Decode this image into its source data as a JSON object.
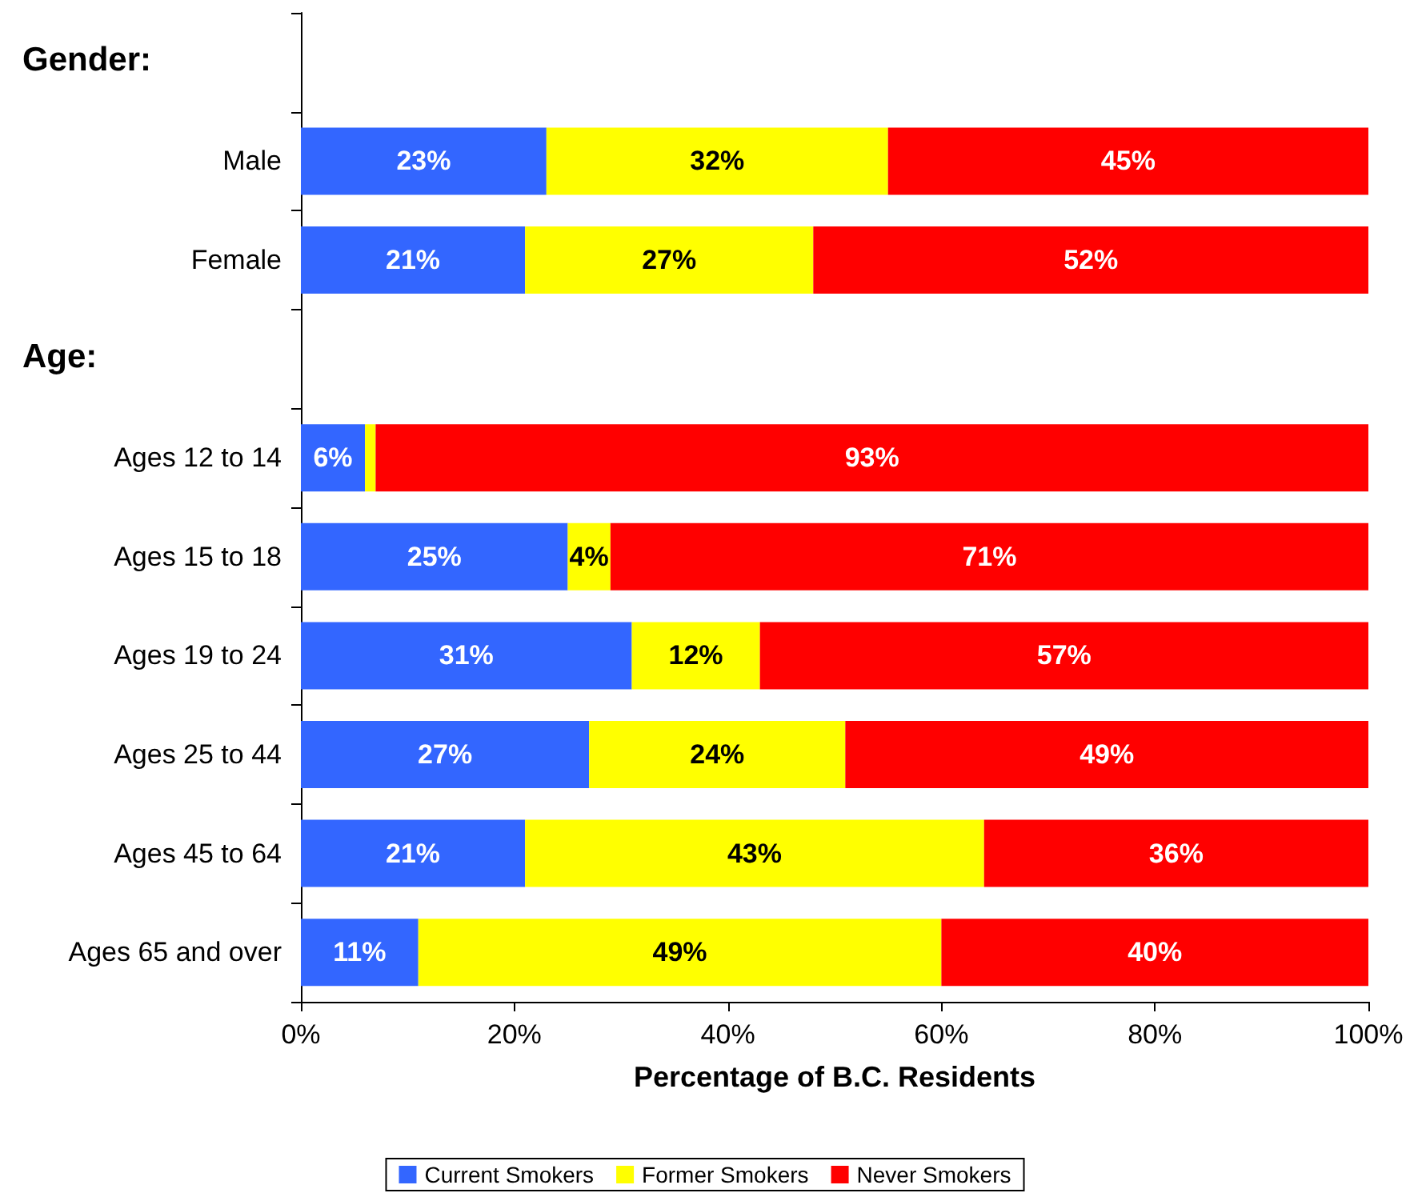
{
  "chart_data": {
    "type": "bar",
    "orientation": "horizontal",
    "stacked": true,
    "annotations": [
      "Gender:",
      "Age:"
    ],
    "categories": [
      null,
      "Male",
      "Female",
      null,
      "Ages 12 to 14",
      "Ages 15 to 18",
      "Ages 19 to 24",
      "Ages 25 to 44",
      "Ages 45 to 64",
      "Ages 65 and over"
    ],
    "series": [
      {
        "name": "Current Smokers",
        "color": "#3366ff",
        "values": [
          null,
          23,
          21,
          null,
          6,
          25,
          31,
          27,
          21,
          11
        ],
        "value_labels": [
          null,
          "23%",
          "21%",
          null,
          "6%",
          "25%",
          "31%",
          "27%",
          "21%",
          "11%"
        ]
      },
      {
        "name": "Former Smokers",
        "color": "#ffff00",
        "values": [
          null,
          32,
          27,
          null,
          1,
          4,
          12,
          24,
          43,
          49
        ],
        "value_labels": [
          null,
          "32%",
          "27%",
          null,
          null,
          "4%",
          "12%",
          "24%",
          "43%",
          "49%"
        ]
      },
      {
        "name": "Never Smokers",
        "color": "#ff0000",
        "values": [
          null,
          45,
          52,
          null,
          93,
          71,
          57,
          49,
          36,
          40
        ],
        "value_labels": [
          null,
          "45%",
          "52%",
          null,
          "93%",
          "71%",
          "57%",
          "49%",
          "36%",
          "40%"
        ]
      }
    ],
    "xlabel": "Percentage of B.C. Residents",
    "xlim": [
      0,
      100
    ],
    "xticks": [
      {
        "value": 0,
        "label": "0%"
      },
      {
        "value": 20,
        "label": "20%"
      },
      {
        "value": 40,
        "label": "40%"
      },
      {
        "value": 60,
        "label": "60%"
      },
      {
        "value": 80,
        "label": "80%"
      },
      {
        "value": 100,
        "label": "100%"
      }
    ],
    "grid": false,
    "legend": "bottom"
  }
}
